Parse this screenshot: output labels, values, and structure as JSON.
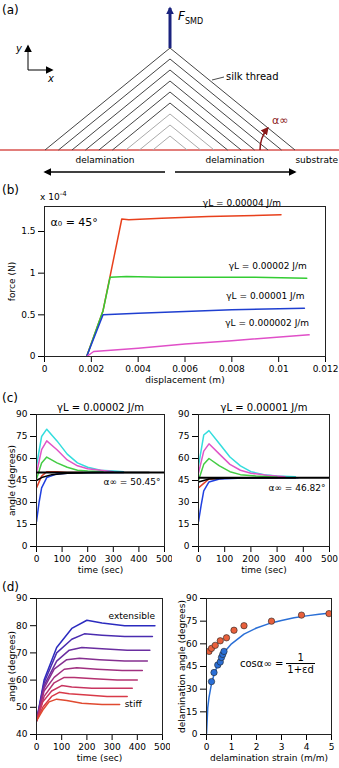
{
  "diagram": {
    "panel": "(a)",
    "force": {
      "symbol": "F",
      "subscript": "SMD"
    },
    "axes": {
      "x": "x",
      "y": "y"
    },
    "thread": "silk thread",
    "substrate": "substrate",
    "angle": "α∞",
    "delamination": [
      "delamination",
      "delamination"
    ]
  },
  "chart_data": [
    {
      "panel": "(b)",
      "type": "line",
      "annotation": "α₀ = 45°",
      "x_label": "displacement (m)",
      "y_label": "force (N)",
      "y_multiplier": {
        "text": "x 10",
        "superscript": "-4"
      },
      "xlim": [
        0,
        0.012
      ],
      "xticks": [
        0,
        0.002,
        0.004,
        0.006,
        0.008,
        0.01,
        0.012
      ],
      "ylim": [
        0,
        0.00018
      ],
      "yticks": [
        0,
        {
          "value": 5e-05,
          "label": "0.5"
        },
        {
          "value": 0.0001,
          "label": "1"
        },
        {
          "value": 0.00015,
          "label": "1.5"
        }
      ],
      "series": [
        {
          "name": "γL = 0.00004 J/m",
          "color": "#e8401c",
          "x": [
            0.0018,
            0.0025,
            0.0033,
            0.0036,
            0.005,
            0.007,
            0.0085,
            0.0101
          ],
          "values": [
            0,
            5.5e-05,
            0.000165,
            0.000164,
            0.000166,
            0.000168,
            0.000169,
            0.00017
          ]
        },
        {
          "name": "γL = 0.00002 J/m",
          "color": "#33cc33",
          "x": [
            0.0018,
            0.0025,
            0.0028,
            0.0035,
            0.005,
            0.007,
            0.009,
            0.0112
          ],
          "values": [
            0,
            5.5e-05,
            9.5e-05,
            9.6e-05,
            9.5e-05,
            9.5e-05,
            9.5e-05,
            9.4e-05
          ]
        },
        {
          "name": "γL = 0.00001 J/m",
          "color": "#1f3fd0",
          "x": [
            0.0018,
            0.0025,
            0.004,
            0.006,
            0.008,
            0.0111
          ],
          "values": [
            0,
            5e-05,
            5.2e-05,
            5.4e-05,
            5.6e-05,
            5.8e-05
          ]
        },
        {
          "name": "γL = 0.000002 J/m",
          "color": "#e04fc8",
          "x": [
            0.0018,
            0.0021,
            0.004,
            0.006,
            0.008,
            0.0113
          ],
          "values": [
            0,
            6e-06,
            1e-05,
            1.5e-05,
            1.9e-05,
            2.6e-05
          ]
        }
      ]
    },
    {
      "panel": "(c)",
      "type": "line",
      "title": "γL = 0.00002 J/m",
      "x_label": "time (sec)",
      "y_label": "angle (degrees)",
      "xlim": [
        0,
        500
      ],
      "xticks": [
        0,
        100,
        200,
        300,
        400,
        500
      ],
      "ylim": [
        0,
        90
      ],
      "yticks": [
        0,
        15,
        30,
        45,
        60,
        75,
        90
      ],
      "reference": {
        "value": 50.45,
        "label": "α∞ = 50.45°"
      },
      "series": [
        {
          "color": "#33dddd",
          "x": [
            0,
            20,
            40,
            80,
            120,
            160,
            200,
            250,
            300,
            340
          ],
          "values": [
            55,
            75,
            80,
            72,
            63,
            57,
            54,
            52,
            51.5,
            51
          ]
        },
        {
          "color": "#e055c8",
          "x": [
            0,
            20,
            40,
            80,
            120,
            160,
            200,
            250,
            300
          ],
          "values": [
            50,
            66,
            72,
            66,
            59,
            55,
            53,
            52,
            51
          ]
        },
        {
          "color": "#44cc44",
          "x": [
            0,
            20,
            40,
            80,
            120,
            160,
            200,
            260
          ],
          "values": [
            46,
            57,
            61,
            57,
            54,
            52,
            51.5,
            51
          ]
        },
        {
          "color": "#e0402a",
          "x": [
            0,
            20,
            40,
            80,
            120,
            180
          ],
          "values": [
            40,
            48,
            51,
            51,
            50.5,
            50.5
          ]
        },
        {
          "color": "#2040e0",
          "x": [
            0,
            10,
            20,
            40,
            80,
            150,
            250,
            340
          ],
          "values": [
            17,
            30,
            40,
            47,
            49.5,
            50.2,
            50.4,
            50.4
          ]
        },
        {
          "color": "#000000",
          "x": [
            0,
            20,
            60,
            120,
            200,
            300,
            440
          ],
          "values": [
            45,
            47,
            49,
            50,
            50.3,
            50.4,
            50.5
          ]
        }
      ]
    },
    {
      "type": "line",
      "title": "γL = 0.00001 J/m",
      "x_label": "time (sec)",
      "xlim": [
        0,
        500
      ],
      "xticks": [
        0,
        100,
        200,
        300,
        400,
        500
      ],
      "ylim": [
        0,
        90
      ],
      "yticks": [
        0,
        15,
        30,
        45,
        60,
        75,
        90
      ],
      "reference": {
        "value": 46.82,
        "label": "α∞ = 46.82°"
      },
      "series": [
        {
          "color": "#33dddd",
          "x": [
            0,
            20,
            40,
            80,
            120,
            160,
            200,
            250,
            300,
            370
          ],
          "values": [
            55,
            76,
            79,
            70,
            61,
            55,
            51,
            49,
            48,
            47.5
          ]
        },
        {
          "color": "#e055c8",
          "x": [
            0,
            20,
            40,
            80,
            120,
            160,
            200,
            260,
            330
          ],
          "values": [
            50,
            65,
            70,
            63,
            56,
            52,
            50,
            48.5,
            47.5
          ]
        },
        {
          "color": "#44cc44",
          "x": [
            0,
            20,
            40,
            80,
            120,
            160,
            220,
            300
          ],
          "values": [
            45,
            56,
            60,
            55,
            51,
            49,
            48,
            47.3
          ]
        },
        {
          "color": "#e0402a",
          "x": [
            0,
            20,
            40,
            100,
            200,
            300
          ],
          "values": [
            40,
            43,
            46,
            46.5,
            46.8,
            46.8
          ]
        },
        {
          "color": "#2040e0",
          "x": [
            0,
            10,
            20,
            40,
            80,
            150,
            250,
            380
          ],
          "values": [
            17,
            28,
            38,
            44,
            46,
            46.6,
            46.8,
            46.8
          ]
        },
        {
          "color": "#000000",
          "x": [
            0,
            40,
            100,
            200,
            370
          ],
          "values": [
            44,
            46,
            46.5,
            46.8,
            46.8
          ]
        }
      ]
    },
    {
      "panel": "(d)",
      "type": "line",
      "x_label": "time (sec)",
      "y_label": "angle (degrees)",
      "annotations": [
        "extensible",
        "stiff"
      ],
      "xlim": [
        0,
        500
      ],
      "xticks": [
        0,
        100,
        200,
        300,
        400,
        500
      ],
      "ylim": [
        40,
        90
      ],
      "yticks": [
        40,
        50,
        60,
        70,
        80,
        90
      ],
      "series": [
        {
          "color": "#2b2bbf",
          "x": [
            0,
            30,
            80,
            140,
            200,
            260,
            350,
            470
          ],
          "values": [
            45,
            60,
            72,
            79,
            82,
            81,
            80,
            80
          ]
        },
        {
          "color": "#4a2cb0",
          "x": [
            0,
            30,
            80,
            140,
            190,
            260,
            350,
            460
          ],
          "values": [
            45,
            59,
            70,
            75,
            77,
            76.5,
            76,
            76
          ]
        },
        {
          "color": "#6a2ea0",
          "x": [
            0,
            30,
            80,
            130,
            180,
            260,
            360,
            450
          ],
          "values": [
            45,
            58,
            67,
            71,
            72,
            71.5,
            71,
            71
          ]
        },
        {
          "color": "#852f90",
          "x": [
            0,
            30,
            70,
            120,
            170,
            250,
            350,
            440
          ],
          "values": [
            45,
            57,
            64,
            67.5,
            68,
            67.5,
            67,
            67
          ]
        },
        {
          "color": "#a03080",
          "x": [
            0,
            30,
            70,
            110,
            160,
            240,
            340,
            420
          ],
          "values": [
            45,
            56,
            61,
            64,
            64.5,
            64,
            63.5,
            63.5
          ]
        },
        {
          "color": "#b53270",
          "x": [
            0,
            30,
            70,
            110,
            150,
            230,
            320,
            400
          ],
          "values": [
            45,
            54,
            59,
            61,
            61,
            60.5,
            60,
            60
          ]
        },
        {
          "color": "#c83560",
          "x": [
            0,
            25,
            60,
            100,
            140,
            220,
            300,
            380
          ],
          "values": [
            45,
            52,
            56,
            58,
            57.5,
            57,
            57,
            57
          ]
        },
        {
          "color": "#d83a48",
          "x": [
            0,
            25,
            60,
            90,
            130,
            200,
            280,
            360
          ],
          "values": [
            45,
            50,
            54,
            55.5,
            55,
            54.5,
            54,
            54
          ]
        },
        {
          "color": "#e04a30",
          "x": [
            0,
            25,
            50,
            80,
            120,
            180,
            260,
            330
          ],
          "values": [
            45,
            49,
            52,
            53,
            52.5,
            51.5,
            51,
            51
          ]
        }
      ]
    },
    {
      "type": "scatter",
      "x_label": "delamination strain (m/m)",
      "y_label": "delamination angle (degrees)",
      "formula": {
        "lhs": "cosα∞ =",
        "numerator": "1",
        "denominator": "1+εd"
      },
      "xlim": [
        0,
        5
      ],
      "xticks": [
        0,
        1,
        2,
        3,
        4,
        5
      ],
      "ylim": [
        0,
        90
      ],
      "yticks": [
        0,
        15,
        30,
        45,
        60,
        75,
        90
      ],
      "series": [
        {
          "type": "line",
          "color": "#2a6fd6",
          "x": [
            0,
            0.05,
            0.1,
            0.2,
            0.3,
            0.5,
            0.75,
            1,
            1.5,
            2,
            2.5,
            3,
            3.5,
            4,
            4.5,
            5
          ],
          "values": [
            0,
            17.8,
            24.6,
            33.6,
            39.7,
            48.2,
            55.2,
            60,
            66.4,
            70.5,
            73.4,
            75.5,
            77.2,
            78.5,
            79.5,
            80.4
          ]
        },
        {
          "type": "scatter",
          "marker": "circle",
          "color": "#e8603c",
          "x": [
            0.1,
            0.2,
            0.35,
            0.55,
            0.8,
            1.1,
            1.5,
            2.6,
            3.8,
            4.9
          ],
          "values": [
            55,
            57,
            59,
            62,
            64,
            69,
            72,
            75,
            79,
            80
          ]
        },
        {
          "type": "scatter",
          "marker": "circle",
          "color": "#2a6fd6",
          "x": [
            0.2,
            0.3,
            0.45,
            0.55,
            0.6,
            0.65,
            0.7
          ],
          "values": [
            35,
            41,
            46,
            48,
            51,
            53,
            55
          ]
        }
      ]
    }
  ]
}
